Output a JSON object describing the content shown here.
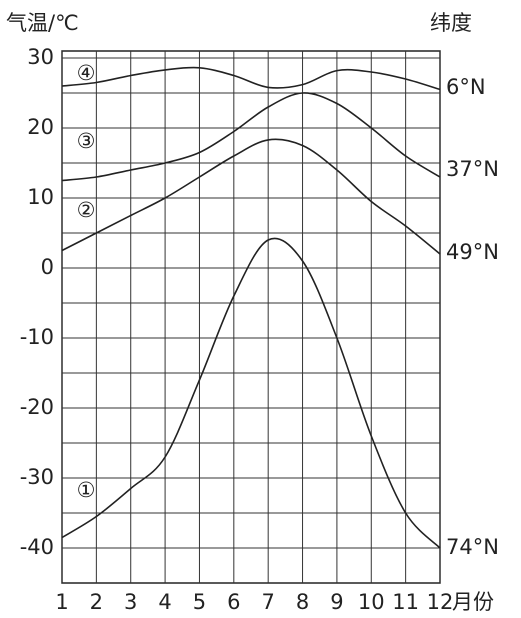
{
  "chart_data": {
    "type": "line",
    "y_label": "气温/℃",
    "right_label": "纬度",
    "x_label": "月份",
    "x": [
      1,
      2,
      3,
      4,
      5,
      6,
      7,
      8,
      9,
      10,
      11,
      12
    ],
    "xlim": [
      1,
      12
    ],
    "xticks": [
      1,
      2,
      3,
      4,
      5,
      6,
      7,
      8,
      9,
      10,
      11,
      12
    ],
    "ylim": [
      -45,
      31
    ],
    "yticks": [
      -40,
      -30,
      -20,
      -10,
      0,
      10,
      20,
      30
    ],
    "grid": true,
    "series": [
      {
        "name": "6°N",
        "tag": "④",
        "color": "#222222",
        "values": [
          26,
          26.5,
          27.5,
          28.3,
          28.6,
          27.5,
          25.8,
          26.2,
          28.2,
          28,
          27,
          25.5
        ]
      },
      {
        "name": "37°N",
        "tag": "③",
        "color": "#222222",
        "values": [
          12.5,
          13,
          14,
          15,
          16.5,
          19.5,
          23,
          25,
          23.5,
          20,
          16,
          13
        ]
      },
      {
        "name": "49°N",
        "tag": "②",
        "color": "#222222",
        "values": [
          2.5,
          5,
          7.5,
          10,
          13,
          16,
          18.3,
          17.5,
          14,
          9.5,
          6,
          2
        ]
      },
      {
        "name": "74°N",
        "tag": "①",
        "color": "#222222",
        "values": [
          -38.5,
          -35.5,
          -31.5,
          -27,
          -16,
          -4,
          4,
          1,
          -10,
          -24,
          -35,
          -40
        ]
      }
    ]
  }
}
